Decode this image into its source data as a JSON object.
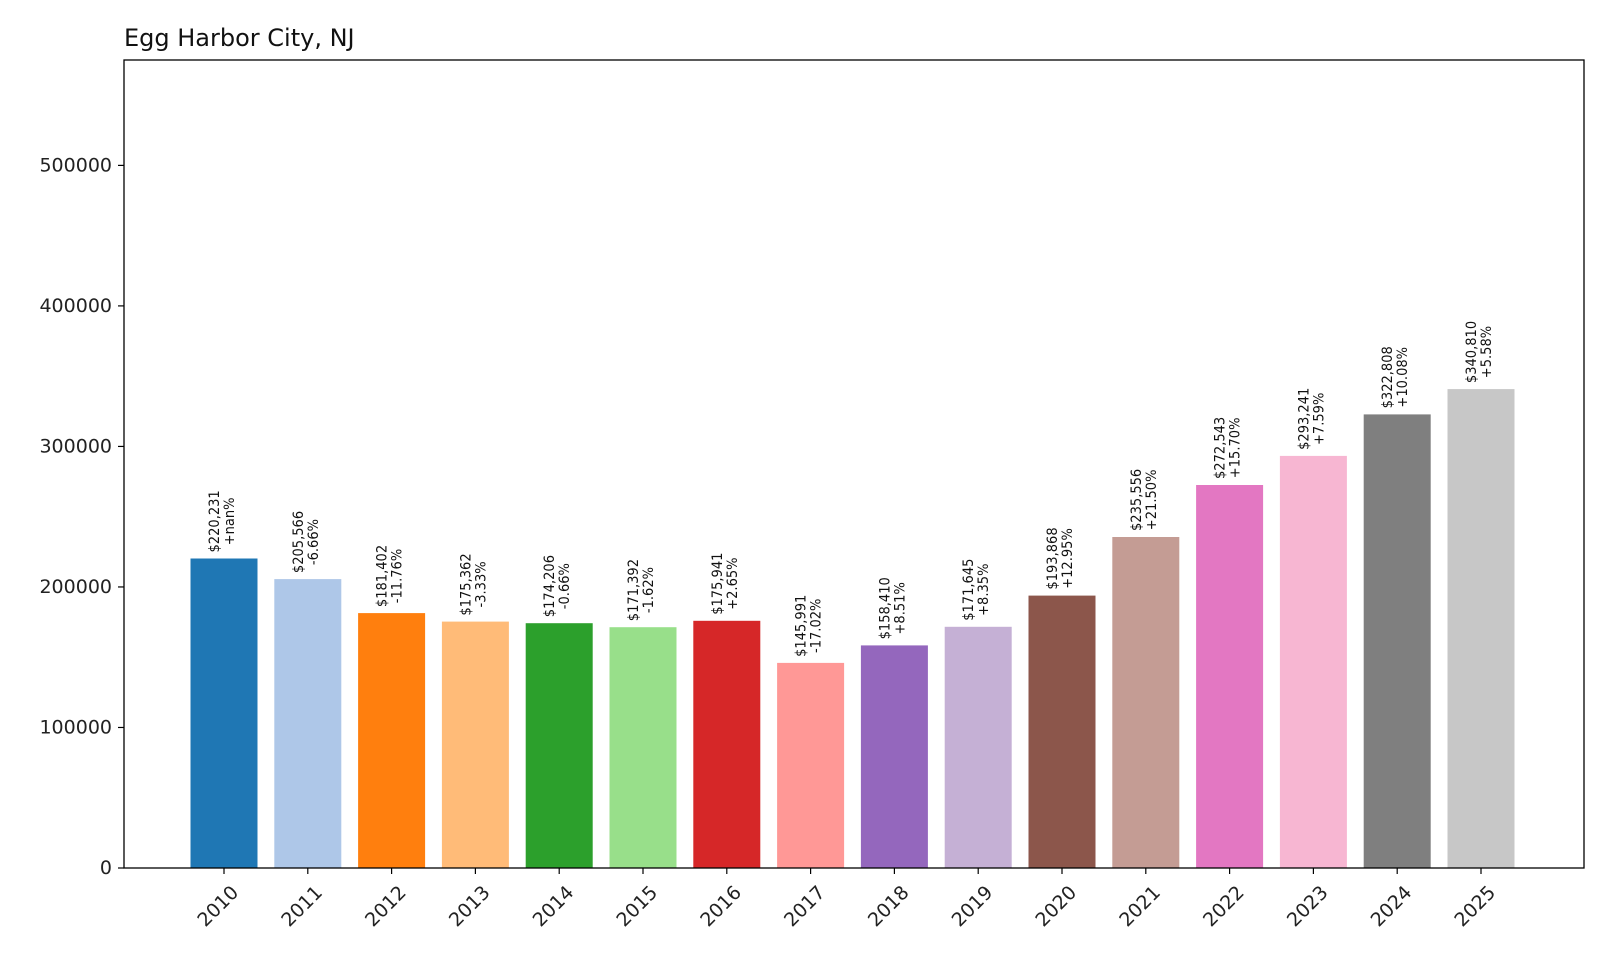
{
  "chart_data": {
    "type": "bar",
    "title": "Egg Harbor City, NJ",
    "xlabel": "",
    "ylabel": "",
    "ylim": [
      0,
      575000
    ],
    "yticks": [
      0,
      100000,
      200000,
      300000,
      400000,
      500000
    ],
    "ytick_labels": [
      "0",
      "100000",
      "200000",
      "300000",
      "400000",
      "500000"
    ],
    "grid": false,
    "legend": "none",
    "categories": [
      "2010",
      "2011",
      "2012",
      "2013",
      "2014",
      "2015",
      "2016",
      "2017",
      "2018",
      "2019",
      "2020",
      "2021",
      "2022",
      "2023",
      "2024",
      "2025"
    ],
    "values": [
      220231,
      205566,
      181402,
      175362,
      174206,
      171392,
      175941,
      145991,
      158410,
      171645,
      193868,
      235556,
      272543,
      293241,
      322808,
      340810
    ],
    "value_labels": [
      "$220,231",
      "$205,566",
      "$181,402",
      "$175,362",
      "$174,206",
      "$171,392",
      "$175,941",
      "$145,991",
      "$158,410",
      "$171,645",
      "$193,868",
      "$235,556",
      "$272,543",
      "$293,241",
      "$322,808",
      "$340,810"
    ],
    "change_labels": [
      "+nan%",
      "-6.66%",
      "-11.76%",
      "-3.33%",
      "-0.66%",
      "-1.62%",
      "+2.65%",
      "-17.02%",
      "+8.51%",
      "+8.35%",
      "+12.95%",
      "+21.50%",
      "+15.70%",
      "+7.59%",
      "+10.08%",
      "+5.58%"
    ],
    "colors": [
      "#1f77b4",
      "#aec7e8",
      "#ff7f0e",
      "#ffbb78",
      "#2ca02c",
      "#98df8a",
      "#d62728",
      "#ff9896",
      "#9467bd",
      "#c5b0d5",
      "#8c564b",
      "#c49c94",
      "#e377c2",
      "#f7b6d2",
      "#7f7f7f",
      "#c7c7c7"
    ]
  }
}
